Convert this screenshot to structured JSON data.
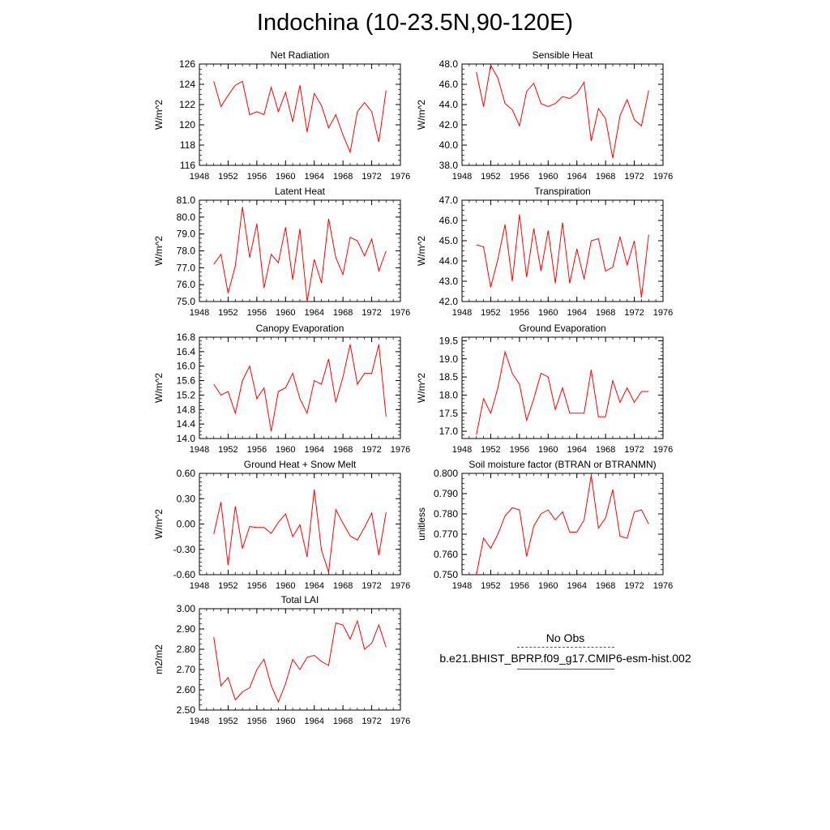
{
  "page": {
    "title": "Indochina (10-23.5N,90-120E)"
  },
  "legend": {
    "obs_label": "No Obs",
    "model_label": "b.e21.BHIST_BPRP.f09_g17.CMIP6-esm-hist.002",
    "obs_color": "#555555",
    "model_color": "#ff0000"
  },
  "chart_data": [
    {
      "type": "line",
      "title": "Net Radiation",
      "ylabel": "W/m^2",
      "xlim": [
        1948,
        1976
      ],
      "xticks": [
        1948,
        1952,
        1956,
        1960,
        1964,
        1968,
        1972,
        1976
      ],
      "ylim": [
        116,
        126
      ],
      "yticks": [
        "116",
        "118",
        "120",
        "122",
        "124",
        "126"
      ],
      "yminor_step": 0.5,
      "series": [
        {
          "color": "#ff0000",
          "x": [
            1950,
            1951,
            1952,
            1953,
            1954,
            1955,
            1956,
            1957,
            1958,
            1959,
            1960,
            1961,
            1962,
            1963,
            1964,
            1965,
            1966,
            1967,
            1968,
            1969,
            1970,
            1971,
            1972,
            1973,
            1974
          ],
          "y": [
            124.3,
            121.8,
            122.9,
            123.9,
            124.3,
            121.0,
            121.3,
            121.0,
            123.7,
            121.3,
            123.2,
            120.3,
            123.9,
            119.3,
            123.1,
            121.9,
            119.7,
            121.0,
            119.0,
            117.3,
            121.3,
            122.2,
            121.3,
            118.3,
            123.4
          ]
        }
      ]
    },
    {
      "type": "line",
      "title": "Sensible Heat",
      "ylabel": "W/m^2",
      "xlim": [
        1948,
        1976
      ],
      "xticks": [
        1948,
        1952,
        1956,
        1960,
        1964,
        1968,
        1972,
        1976
      ],
      "ylim": [
        38,
        48
      ],
      "yticks": [
        "38.0",
        "40.0",
        "42.0",
        "44.0",
        "46.0",
        "48.0"
      ],
      "yminor_step": 0.5,
      "series": [
        {
          "color": "#ff0000",
          "x": [
            1950,
            1951,
            1952,
            1953,
            1954,
            1955,
            1956,
            1957,
            1958,
            1959,
            1960,
            1961,
            1962,
            1963,
            1964,
            1965,
            1966,
            1967,
            1968,
            1969,
            1970,
            1971,
            1972,
            1973,
            1974
          ],
          "y": [
            47.2,
            43.8,
            47.9,
            46.6,
            44.1,
            43.5,
            41.9,
            45.3,
            46.1,
            44.1,
            43.8,
            44.1,
            44.8,
            44.6,
            45.1,
            46.2,
            40.4,
            43.6,
            42.6,
            38.7,
            42.9,
            44.5,
            42.5,
            41.9,
            45.4
          ]
        }
      ]
    },
    {
      "type": "line",
      "title": "Latent Heat",
      "ylabel": "W/m^2",
      "xlim": [
        1948,
        1976
      ],
      "xticks": [
        1948,
        1952,
        1956,
        1960,
        1964,
        1968,
        1972,
        1976
      ],
      "ylim": [
        75,
        81
      ],
      "yticks": [
        "75.0",
        "76.0",
        "77.0",
        "78.0",
        "79.0",
        "80.0",
        "81.0"
      ],
      "yminor_step": 0.25,
      "series": [
        {
          "color": "#ff0000",
          "x": [
            1950,
            1951,
            1952,
            1953,
            1954,
            1955,
            1956,
            1957,
            1958,
            1959,
            1960,
            1961,
            1962,
            1963,
            1964,
            1965,
            1966,
            1967,
            1968,
            1969,
            1970,
            1971,
            1972,
            1973,
            1974
          ],
          "y": [
            77.2,
            77.8,
            75.5,
            77.1,
            80.6,
            77.6,
            79.6,
            75.8,
            77.8,
            77.3,
            79.4,
            76.3,
            79.3,
            75.0,
            77.5,
            76.1,
            79.9,
            77.6,
            76.6,
            78.8,
            78.6,
            77.7,
            78.7,
            76.8,
            78.0
          ]
        }
      ]
    },
    {
      "type": "line",
      "title": "Transpiration",
      "ylabel": "W/m^2",
      "xlim": [
        1948,
        1976
      ],
      "xticks": [
        1948,
        1952,
        1956,
        1960,
        1964,
        1968,
        1972,
        1976
      ],
      "ylim": [
        42,
        47
      ],
      "yticks": [
        "42.0",
        "43.0",
        "44.0",
        "45.0",
        "46.0",
        "47.0"
      ],
      "yminor_step": 0.25,
      "series": [
        {
          "color": "#ff0000",
          "x": [
            1950,
            1951,
            1952,
            1953,
            1954,
            1955,
            1956,
            1957,
            1958,
            1959,
            1960,
            1961,
            1962,
            1963,
            1964,
            1965,
            1966,
            1967,
            1968,
            1969,
            1970,
            1971,
            1972,
            1973,
            1974
          ],
          "y": [
            44.8,
            44.7,
            42.7,
            44.1,
            45.8,
            43.0,
            46.3,
            43.2,
            45.6,
            43.5,
            45.5,
            42.9,
            45.9,
            42.9,
            44.6,
            43.1,
            45.0,
            45.1,
            43.5,
            43.7,
            45.2,
            43.8,
            45.0,
            42.2,
            45.3
          ]
        }
      ]
    },
    {
      "type": "line",
      "title": "Canopy Evaporation",
      "ylabel": "W/m^2",
      "xlim": [
        1948,
        1976
      ],
      "xticks": [
        1948,
        1952,
        1956,
        1960,
        1964,
        1968,
        1972,
        1976
      ],
      "ylim": [
        14.0,
        16.8
      ],
      "yticks": [
        "14.0",
        "14.4",
        "14.8",
        "15.2",
        "15.6",
        "16.0",
        "16.4",
        "16.8"
      ],
      "yminor_step": 0.1,
      "series": [
        {
          "color": "#ff0000",
          "x": [
            1950,
            1951,
            1952,
            1953,
            1954,
            1955,
            1956,
            1957,
            1958,
            1959,
            1960,
            1961,
            1962,
            1963,
            1964,
            1965,
            1966,
            1967,
            1968,
            1969,
            1970,
            1971,
            1972,
            1973,
            1974
          ],
          "y": [
            15.5,
            15.2,
            15.3,
            14.7,
            15.6,
            16.0,
            15.1,
            15.4,
            14.2,
            15.3,
            15.4,
            15.8,
            15.1,
            14.7,
            15.6,
            15.5,
            16.2,
            15.0,
            15.7,
            16.6,
            15.5,
            15.8,
            15.8,
            16.6,
            14.6
          ]
        }
      ]
    },
    {
      "type": "line",
      "title": "Ground Evaporation",
      "ylabel": "W/m^2",
      "xlim": [
        1948,
        1976
      ],
      "xticks": [
        1948,
        1952,
        1956,
        1960,
        1964,
        1968,
        1972,
        1976
      ],
      "ylim": [
        16.8,
        19.6
      ],
      "yticks": [
        "17.0",
        "17.5",
        "18.0",
        "18.5",
        "19.0",
        "19.5"
      ],
      "yminor_step": 0.1,
      "series": [
        {
          "color": "#ff0000",
          "x": [
            1950,
            1951,
            1952,
            1953,
            1954,
            1955,
            1956,
            1957,
            1958,
            1959,
            1960,
            1961,
            1962,
            1963,
            1964,
            1965,
            1966,
            1967,
            1968,
            1969,
            1970,
            1971,
            1972,
            1973,
            1974
          ],
          "y": [
            16.9,
            17.9,
            17.5,
            18.2,
            19.2,
            18.6,
            18.3,
            17.3,
            17.9,
            18.6,
            18.5,
            17.6,
            18.2,
            17.5,
            17.5,
            17.5,
            18.7,
            17.4,
            17.4,
            18.4,
            17.8,
            18.2,
            17.8,
            18.1,
            18.1
          ]
        }
      ]
    },
    {
      "type": "line",
      "title": "Ground Heat + Snow Melt",
      "ylabel": "W/m^2",
      "xlim": [
        1948,
        1976
      ],
      "xticks": [
        1948,
        1952,
        1956,
        1960,
        1964,
        1968,
        1972,
        1976
      ],
      "ylim": [
        -0.6,
        0.6
      ],
      "yticks": [
        "-0.60",
        "-0.30",
        "0.00",
        "0.30",
        "0.60"
      ],
      "yminor_step": 0.05,
      "series": [
        {
          "color": "#ff0000",
          "x": [
            1950,
            1951,
            1952,
            1953,
            1954,
            1955,
            1956,
            1957,
            1958,
            1959,
            1960,
            1961,
            1962,
            1963,
            1964,
            1965,
            1966,
            1967,
            1968,
            1969,
            1970,
            1971,
            1972,
            1973,
            1974
          ],
          "y": [
            -0.12,
            0.26,
            -0.49,
            0.21,
            -0.29,
            -0.03,
            -0.04,
            -0.04,
            -0.11,
            0.02,
            0.12,
            -0.15,
            -0.01,
            -0.39,
            0.41,
            -0.31,
            -0.57,
            0.17,
            0.01,
            -0.14,
            -0.19,
            -0.04,
            0.13,
            -0.37,
            0.14
          ]
        }
      ]
    },
    {
      "type": "line",
      "title": "Soil moisture factor (BTRAN or BTRANMN)",
      "ylabel": "unitless",
      "xlim": [
        1948,
        1976
      ],
      "xticks": [
        1948,
        1952,
        1956,
        1960,
        1964,
        1968,
        1972,
        1976
      ],
      "ylim": [
        0.75,
        0.8
      ],
      "yticks": [
        "0.750",
        "0.760",
        "0.770",
        "0.780",
        "0.790",
        "0.800"
      ],
      "yminor_step": 0.0025,
      "series": [
        {
          "color": "#ff0000",
          "x": [
            1950,
            1951,
            1952,
            1953,
            1954,
            1955,
            1956,
            1957,
            1958,
            1959,
            1960,
            1961,
            1962,
            1963,
            1964,
            1965,
            1966,
            1967,
            1968,
            1969,
            1970,
            1971,
            1972,
            1973,
            1974
          ],
          "y": [
            0.75,
            0.768,
            0.763,
            0.77,
            0.779,
            0.783,
            0.782,
            0.759,
            0.774,
            0.78,
            0.782,
            0.777,
            0.781,
            0.771,
            0.771,
            0.777,
            0.799,
            0.773,
            0.778,
            0.792,
            0.769,
            0.768,
            0.781,
            0.782,
            0.775
          ]
        }
      ]
    },
    {
      "type": "line",
      "title": "Total LAI",
      "ylabel": "m2/m2",
      "xlim": [
        1948,
        1976
      ],
      "xticks": [
        1948,
        1952,
        1956,
        1960,
        1964,
        1968,
        1972,
        1976
      ],
      "ylim": [
        2.5,
        3.0
      ],
      "yticks": [
        "2.50",
        "2.60",
        "2.70",
        "2.80",
        "2.90",
        "3.00"
      ],
      "yminor_step": 0.025,
      "series": [
        {
          "color": "#ff0000",
          "x": [
            1950,
            1951,
            1952,
            1953,
            1954,
            1955,
            1956,
            1957,
            1958,
            1959,
            1960,
            1961,
            1962,
            1963,
            1964,
            1965,
            1966,
            1967,
            1968,
            1969,
            1970,
            1971,
            1972,
            1973,
            1974
          ],
          "y": [
            2.86,
            2.62,
            2.66,
            2.55,
            2.59,
            2.61,
            2.7,
            2.75,
            2.62,
            2.54,
            2.63,
            2.75,
            2.7,
            2.76,
            2.77,
            2.74,
            2.72,
            2.93,
            2.92,
            2.85,
            2.94,
            2.8,
            2.83,
            2.92,
            2.81
          ]
        }
      ]
    }
  ]
}
